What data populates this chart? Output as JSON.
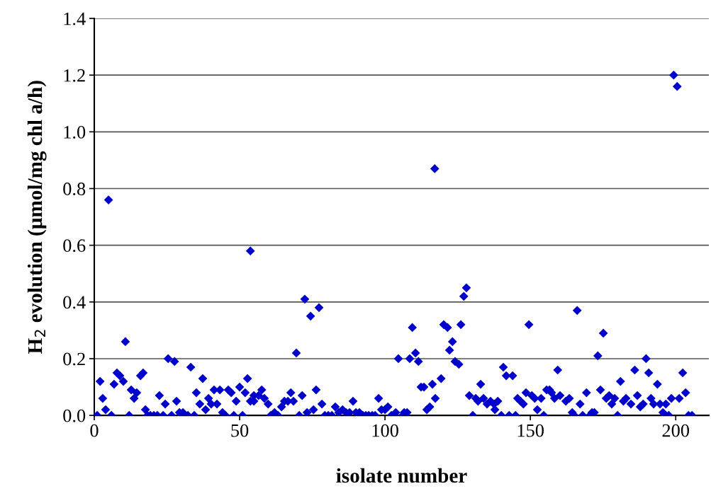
{
  "chart_data": {
    "type": "scatter",
    "xlabel": "isolate number",
    "ylabel": "H$_{2}$ evolution (µmol/mg chl a/h)",
    "xlim": [
      0,
      211.4
    ],
    "xticks": [
      0,
      50,
      100,
      150,
      200
    ],
    "ylim": [
      0,
      1.4
    ],
    "yticks": [
      {
        "value": 0,
        "label": "0.0"
      },
      {
        "value": 0.2,
        "label": "0.2"
      },
      {
        "value": 0.4,
        "label": "0.4"
      },
      {
        "value": 0.6,
        "label": "0.6"
      },
      {
        "value": 0.8,
        "label": "0.8"
      },
      {
        "value": 1.0,
        "label": "1.0"
      },
      {
        "value": 1.2,
        "label": "1.2"
      },
      {
        "value": 1.4,
        "label": "1.4"
      }
    ],
    "grid": "y",
    "marker": "diamond",
    "series": [
      {
        "color": "#0000cc",
        "x": [
          1,
          2,
          2.9,
          3.9,
          4.9,
          5.9,
          6.8,
          7.8,
          8.8,
          10,
          10.7,
          12,
          12.7,
          13.7,
          14.6,
          15.9,
          16.8,
          17.6,
          18.3,
          19.3,
          20.5,
          21.7,
          22.4,
          23.7,
          24.4,
          25.4,
          26.6,
          27.6,
          28.3,
          29.3,
          30.5,
          32.2,
          33.2,
          34.4,
          35.1,
          36.3,
          37.3,
          38.3,
          39.3,
          40.2,
          41.2,
          42.2,
          43.2,
          44.1,
          45.1,
          46.1,
          47.1,
          48,
          48.8,
          50,
          51,
          51.9,
          52.7,
          53.7,
          53.7,
          54.9,
          54.9,
          56.5,
          57.6,
          58.5,
          59.8,
          60.7,
          62,
          63.2,
          64.4,
          65.4,
          66.6,
          67.6,
          68.5,
          69.5,
          70.5,
          71.5,
          72.4,
          73.2,
          74.4,
          75.4,
          76.3,
          77.3,
          78.3,
          79.3,
          80.5,
          81.7,
          82.9,
          84.1,
          85.4,
          86.6,
          87.8,
          89,
          90,
          91.2,
          92.4,
          93.4,
          94.4,
          95.6,
          96.6,
          97.8,
          98.8,
          100,
          101,
          102.2,
          103.7,
          104.6,
          106.1,
          106.6,
          107.6,
          108.5,
          109.4,
          110.5,
          111.5,
          112.4,
          113.4,
          114.4,
          115.4,
          116.3,
          117.1,
          117.3,
          119.3,
          120.2,
          121.5,
          122.2,
          123.2,
          124.1,
          125.4,
          126.1,
          127.1,
          128,
          129,
          130.2,
          131.2,
          132,
          132.9,
          133.9,
          135.1,
          136.3,
          137.5,
          137.8,
          138.8,
          140,
          140.7,
          141.7,
          142.7,
          143.9,
          144.9,
          145.6,
          146.6,
          147.6,
          148.5,
          149.5,
          150.5,
          151.5,
          152.4,
          153.7,
          154.6,
          155.6,
          156.6,
          157.3,
          158.3,
          159.4,
          160.2,
          162.2,
          163.4,
          164.4,
          165.1,
          166.1,
          167.1,
          168,
          169.3,
          170.5,
          171.2,
          172,
          173.2,
          174.1,
          175.1,
          176.1,
          177.1,
          178,
          179,
          180,
          181,
          182,
          182.9,
          184.6,
          185.9,
          186.8,
          187.8,
          188.8,
          189.8,
          190.7,
          191.5,
          192.4,
          193.7,
          194.6,
          195.6,
          196.6,
          197.6,
          198.5,
          199.3,
          200.5,
          201.2,
          202.4,
          203.4,
          204.4,
          205.6
        ],
        "values": [
          0,
          0.12,
          0.06,
          0.02,
          0.76,
          0,
          0.11,
          0.15,
          0.14,
          0.12,
          0.26,
          0,
          0.09,
          0.06,
          0.08,
          0.14,
          0.15,
          0.02,
          0,
          0,
          0,
          0,
          0.07,
          0,
          0.04,
          0.2,
          0,
          0.19,
          0.05,
          0.01,
          0.01,
          0,
          0.17,
          0,
          0.08,
          0.04,
          0.13,
          0.02,
          0.06,
          0.04,
          0.09,
          0.04,
          0.09,
          0.01,
          0,
          0.09,
          0.08,
          0,
          0.05,
          0.1,
          0,
          0.08,
          0.13,
          0.05,
          0.58,
          0.07,
          0.05,
          0.07,
          0.09,
          0.06,
          0.04,
          0,
          0.01,
          0,
          0.03,
          0.05,
          0.05,
          0.08,
          0.05,
          0.22,
          0,
          0.07,
          0.41,
          0.01,
          0.35,
          0.02,
          0.09,
          0.38,
          0.04,
          0,
          0,
          0,
          0.03,
          0.01,
          0.02,
          0.01,
          0.01,
          0.05,
          0.01,
          0.01,
          0,
          0,
          0,
          0,
          0,
          0.06,
          0.02,
          0.02,
          0.03,
          0,
          0.01,
          0.2,
          0,
          0.01,
          0.01,
          0.2,
          0.31,
          0.22,
          0.19,
          0.1,
          0.1,
          0.02,
          0.03,
          0.11,
          0.87,
          0.06,
          0.13,
          0.32,
          0.31,
          0.23,
          0.26,
          0.19,
          0.18,
          0.32,
          0.42,
          0.45,
          0.07,
          0,
          0.06,
          0.05,
          0.11,
          0.06,
          0.04,
          0.05,
          0.04,
          0.02,
          0.05,
          0,
          0.17,
          0.14,
          0,
          0.14,
          0,
          0.06,
          0.05,
          0.04,
          0.08,
          0.32,
          0.07,
          0.06,
          0.02,
          0.06,
          0,
          0.09,
          0.09,
          0.08,
          0.06,
          0.16,
          0.07,
          0.05,
          0.06,
          0.01,
          0,
          0.37,
          0.04,
          0,
          0.08,
          0,
          0.01,
          0.01,
          0.21,
          0.09,
          0.29,
          0.06,
          0.07,
          0.04,
          0.06,
          0,
          0.12,
          0.05,
          0.06,
          0.04,
          0.16,
          0.07,
          0.03,
          0.04,
          0.2,
          0.15,
          0.06,
          0.04,
          0.11,
          0.04,
          0.01,
          0.04,
          0,
          0.06,
          1.2,
          1.16,
          0.06,
          0.15,
          0.08,
          0,
          0
        ]
      }
    ]
  }
}
